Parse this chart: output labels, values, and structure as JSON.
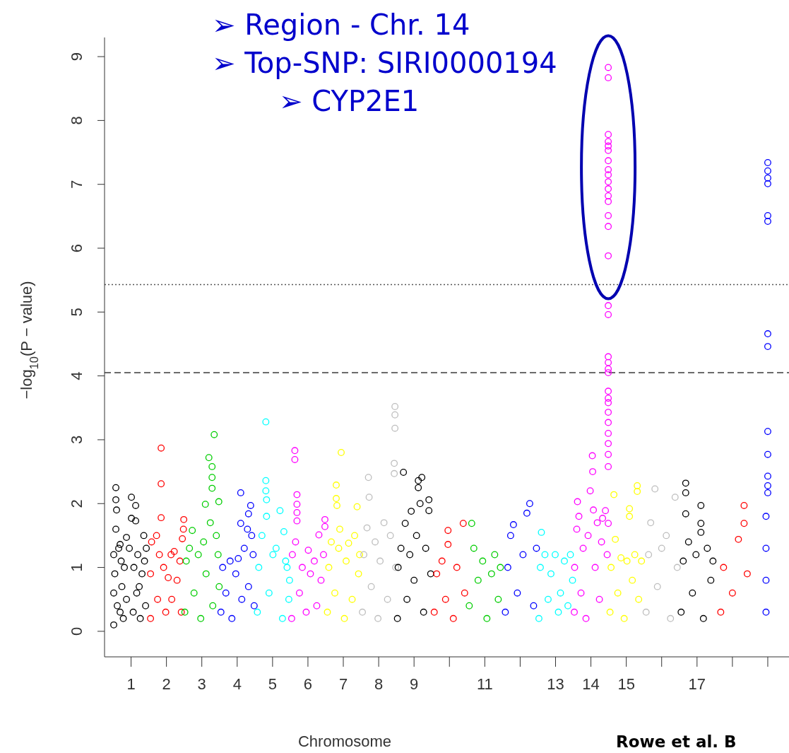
{
  "chart_data": {
    "type": "scatter",
    "xlabel": "Chromosome",
    "ylabel": "−log$_{10}$(P − value)",
    "annotations": [
      "➢ Region - Chr. 14",
      "➢ Top-SNP: SIRI0000194",
      "➢ CYP2E1",
      "Rowe et al. B"
    ],
    "xlim": [
      0.25,
      19.6
    ],
    "ylim": [
      -0.4,
      9.3
    ],
    "yticks": [
      0,
      1,
      2,
      3,
      4,
      5,
      6,
      7,
      8,
      9
    ],
    "xticks": [
      1,
      2,
      3,
      4,
      5,
      6,
      7,
      8,
      9,
      {
        "value": 10,
        "label": null
      },
      11,
      {
        "value": 12,
        "label": null
      },
      13,
      14,
      15,
      {
        "value": 16,
        "label": null
      },
      17,
      {
        "value": 18,
        "label": null
      },
      {
        "value": 19,
        "label": null
      }
    ],
    "ref_lines": [
      {
        "axis": "y",
        "value": 5.43,
        "line_style": "dotted",
        "color": "#555555"
      },
      {
        "axis": "y",
        "value": 4.05,
        "line_style": "dashed",
        "color": "#555555"
      }
    ],
    "legend": false,
    "marker": "circle",
    "series": [
      {
        "color": "#000000",
        "x": [
          0.51,
          0.51,
          0.51,
          0.57,
          0.57,
          0.59,
          0.57,
          0.54,
          0.61,
          0.65,
          0.69,
          0.69,
          0.72,
          0.74,
          0.78,
          0.81,
          0.87,
          0.87,
          0.95,
          1.01,
          1.01,
          1.06,
          1.08,
          1.13,
          1.13,
          1.16,
          1.19,
          1.23,
          1.26,
          1.31,
          1.36,
          1.38,
          1.41,
          1.43
        ],
        "values": [
          0.1,
          0.6,
          1.2,
          2.25,
          2.06,
          1.9,
          1.6,
          0.9,
          0.4,
          1.3,
          1.36,
          0.3,
          1.1,
          0.7,
          0.2,
          1.0,
          1.47,
          0.5,
          1.3,
          2.1,
          1.77,
          0.3,
          1.0,
          1.97,
          1.73,
          0.6,
          1.2,
          0.7,
          0.2,
          0.9,
          1.5,
          1.1,
          0.4,
          1.3
        ]
      },
      {
        "color": "#ff0000",
        "x": [
          1.55,
          1.55,
          1.58,
          1.72,
          1.75,
          1.8,
          1.85,
          1.85,
          1.85,
          1.92,
          1.98,
          2.05,
          2.13,
          2.15,
          2.22,
          2.3,
          2.38,
          2.42,
          2.48,
          2.49,
          2.45
        ],
        "values": [
          0.2,
          0.9,
          1.4,
          1.5,
          0.5,
          1.2,
          2.87,
          2.31,
          1.78,
          1.0,
          0.3,
          0.84,
          1.2,
          0.5,
          1.25,
          0.8,
          1.1,
          0.3,
          1.6,
          1.75,
          1.45
        ]
      },
      {
        "color": "#00cd00",
        "x": [
          2.52,
          2.56,
          2.65,
          2.73,
          2.78,
          2.9,
          2.97,
          3.05,
          3.1,
          3.12,
          3.2,
          3.24,
          3.29,
          3.29,
          3.29,
          3.31,
          3.35,
          3.41,
          3.46,
          3.48,
          3.49
        ],
        "values": [
          0.3,
          1.1,
          1.3,
          1.58,
          0.6,
          1.2,
          0.2,
          1.4,
          1.99,
          0.9,
          2.72,
          1.7,
          2.58,
          2.41,
          2.24,
          0.4,
          3.08,
          1.5,
          1.2,
          2.03,
          0.7
        ]
      },
      {
        "color": "#0000ff",
        "x": [
          3.54,
          3.59,
          3.68,
          3.8,
          3.85,
          3.96,
          4.03,
          4.1,
          4.1,
          4.13,
          4.2,
          4.29,
          4.32,
          4.38,
          4.32,
          4.45,
          4.48,
          4.41
        ],
        "values": [
          0.3,
          1.0,
          0.6,
          1.1,
          0.2,
          0.9,
          1.14,
          2.17,
          1.69,
          0.5,
          1.3,
          1.6,
          0.7,
          1.97,
          1.84,
          1.2,
          0.4,
          1.5
        ]
      },
      {
        "color": "#00ffff",
        "x": [
          4.57,
          4.61,
          4.7,
          4.81,
          4.81,
          4.81,
          4.83,
          4.83,
          4.9,
          5.01,
          5.1,
          5.21,
          5.28,
          5.32,
          5.41,
          5.46,
          5.37,
          5.48
        ],
        "values": [
          0.3,
          1.0,
          1.5,
          3.28,
          2.36,
          2.2,
          2.06,
          1.8,
          0.6,
          1.2,
          1.3,
          1.89,
          0.2,
          1.56,
          1.0,
          0.5,
          1.1,
          0.8
        ]
      },
      {
        "color": "#ff00ff",
        "x": [
          5.54,
          5.56,
          5.63,
          5.63,
          5.65,
          5.69,
          5.69,
          5.69,
          5.69,
          5.76,
          5.84,
          5.95,
          6.01,
          6.07,
          6.18,
          6.25,
          6.31,
          6.37,
          6.48,
          6.48,
          6.44
        ],
        "values": [
          0.2,
          1.2,
          2.83,
          2.69,
          1.4,
          2.14,
          1.99,
          1.86,
          1.73,
          0.6,
          1.0,
          0.3,
          1.27,
          0.9,
          1.1,
          0.4,
          1.51,
          0.8,
          1.75,
          1.64,
          1.2
        ]
      },
      {
        "color": "#ffff00",
        "x": [
          6.55,
          6.59,
          6.66,
          6.76,
          6.87,
          6.94,
          6.8,
          6.8,
          6.82,
          6.9,
          7.03,
          7.08,
          7.15,
          7.25,
          7.32,
          7.39,
          7.43,
          7.46
        ],
        "values": [
          0.3,
          1.0,
          1.4,
          0.6,
          1.3,
          2.8,
          2.29,
          2.08,
          1.97,
          1.6,
          0.2,
          1.1,
          1.38,
          0.5,
          1.5,
          1.95,
          0.9,
          1.2
        ]
      },
      {
        "color": "#bebebe",
        "x": [
          7.54,
          7.58,
          7.67,
          7.71,
          7.73,
          7.79,
          7.9,
          7.98,
          8.04,
          8.15,
          8.25,
          8.33,
          8.44,
          8.44,
          8.46,
          8.46,
          8.46,
          8.48
        ],
        "values": [
          0.3,
          1.2,
          1.62,
          2.41,
          2.1,
          0.7,
          1.4,
          0.2,
          1.1,
          1.7,
          0.5,
          1.5,
          2.63,
          2.47,
          3.52,
          3.39,
          3.18,
          1.0
        ]
      },
      {
        "color": "#000000",
        "x": [
          8.53,
          8.55,
          8.63,
          8.7,
          8.75,
          8.8,
          8.88,
          8.92,
          9.0,
          9.07,
          9.12,
          9.12,
          9.17,
          9.22,
          9.27,
          9.33,
          9.42,
          9.42,
          9.47
        ],
        "values": [
          0.2,
          1.0,
          1.3,
          2.49,
          1.69,
          0.5,
          1.2,
          1.88,
          0.8,
          1.5,
          2.36,
          2.25,
          2.0,
          2.41,
          0.3,
          1.3,
          2.06,
          1.89,
          0.9
        ]
      },
      {
        "color": "#ff0000",
        "x": [
          9.57,
          9.64,
          9.79,
          9.89,
          9.96,
          9.96,
          10.11,
          10.21,
          10.39,
          10.43
        ],
        "values": [
          0.3,
          0.9,
          1.1,
          0.5,
          1.58,
          1.36,
          0.2,
          1.0,
          1.69,
          0.6
        ]
      },
      {
        "color": "#00cd00",
        "x": [
          10.56,
          10.63,
          10.69,
          10.81,
          10.94,
          11.06,
          11.19,
          11.28,
          11.38,
          11.44
        ],
        "values": [
          0.4,
          1.69,
          1.3,
          0.8,
          1.1,
          0.2,
          0.9,
          1.2,
          0.5,
          1.0
        ]
      },
      {
        "color": "#0000ff",
        "x": [
          11.58,
          11.65,
          11.73,
          11.81,
          11.92,
          12.08,
          12.19,
          12.27,
          12.38,
          12.46
        ],
        "values": [
          0.3,
          1.0,
          1.5,
          1.67,
          0.6,
          1.2,
          1.85,
          2.0,
          0.4,
          1.3
        ]
      },
      {
        "color": "#00ffff",
        "x": [
          12.53,
          12.57,
          12.6,
          12.7,
          12.79,
          12.87,
          12.99,
          13.08,
          13.14,
          13.25,
          13.35,
          13.42,
          13.48
        ],
        "values": [
          0.2,
          1.0,
          1.55,
          1.2,
          0.5,
          0.9,
          1.2,
          0.3,
          0.6,
          1.1,
          0.4,
          1.2,
          0.8
        ]
      },
      {
        "color": "#ff00ff",
        "x": [
          13.53,
          13.54,
          13.6,
          13.62,
          13.66,
          13.72,
          13.78,
          13.86,
          13.92,
          13.98,
          14.04,
          14.05,
          14.07,
          14.12,
          14.18,
          14.24,
          14.3,
          14.33,
          14.41,
          14.46,
          14.49,
          14.49,
          14.49,
          14.49,
          14.49,
          14.49,
          14.49,
          14.49,
          14.49,
          14.49,
          14.49,
          14.49,
          14.49,
          14.49,
          14.49,
          14.49,
          14.49,
          14.49,
          14.49,
          14.49,
          14.49,
          14.49,
          14.49,
          14.49,
          14.49,
          14.49,
          14.49,
          14.49,
          14.49,
          14.49,
          14.49,
          14.49
        ],
        "values": [
          0.3,
          1.0,
          1.6,
          2.03,
          1.8,
          0.6,
          1.3,
          0.2,
          1.5,
          2.2,
          2.75,
          2.5,
          1.9,
          1.0,
          1.7,
          0.5,
          1.4,
          1.77,
          1.89,
          1.2,
          1.69,
          2.58,
          2.77,
          2.94,
          3.1,
          3.27,
          3.43,
          3.58,
          3.65,
          3.76,
          4.05,
          4.11,
          4.21,
          4.3,
          4.96,
          5.1,
          5.88,
          6.34,
          6.51,
          6.73,
          6.82,
          6.93,
          7.04,
          7.15,
          7.23,
          7.37,
          7.53,
          7.6,
          7.67,
          7.78,
          8.67,
          8.83
        ]
      },
      {
        "color": "#ffff00",
        "x": [
          14.54,
          14.57,
          14.65,
          14.69,
          14.76,
          14.85,
          14.94,
          15.02,
          15.09,
          15.09,
          15.17,
          15.24,
          15.31,
          15.31,
          15.35,
          15.43
        ],
        "values": [
          0.3,
          1.0,
          2.14,
          1.44,
          0.6,
          1.15,
          0.2,
          1.1,
          1.92,
          1.8,
          0.8,
          1.2,
          2.28,
          2.19,
          0.5,
          1.1
        ]
      },
      {
        "color": "#bebebe",
        "x": [
          15.56,
          15.63,
          15.69,
          15.81,
          15.88,
          16.0,
          16.13,
          16.25,
          16.38,
          16.44
        ],
        "values": [
          0.3,
          1.2,
          1.7,
          2.23,
          0.7,
          1.3,
          1.5,
          0.2,
          2.1,
          1.0
        ]
      },
      {
        "color": "#000000",
        "x": [
          16.55,
          16.61,
          16.68,
          16.68,
          16.68,
          16.76,
          16.87,
          16.97,
          17.11,
          17.11,
          17.11,
          17.18,
          17.29,
          17.39,
          17.45
        ],
        "values": [
          0.3,
          1.1,
          2.32,
          2.17,
          1.84,
          1.4,
          0.6,
          1.2,
          1.97,
          1.69,
          1.55,
          0.2,
          1.3,
          0.8,
          1.1
        ]
      },
      {
        "color": "#ff0000",
        "x": [
          17.67,
          17.75,
          18.0,
          18.17,
          18.33,
          18.33,
          18.42
        ],
        "values": [
          0.3,
          1.0,
          0.6,
          1.44,
          1.97,
          1.69,
          0.9
        ]
      },
      {
        "color": "#0000ff",
        "x": [
          18.95,
          18.95,
          18.95,
          18.95,
          19.0,
          19.0,
          19.0,
          19.0,
          19.0,
          19.0,
          19.0,
          19.0,
          19.0,
          19.0,
          19.0,
          19.0,
          19.0
        ],
        "values": [
          0.3,
          0.8,
          1.3,
          1.8,
          2.17,
          2.28,
          2.43,
          2.77,
          3.13,
          4.46,
          4.66,
          6.42,
          6.51,
          7.01,
          7.1,
          7.21,
          7.34
        ]
      }
    ]
  }
}
